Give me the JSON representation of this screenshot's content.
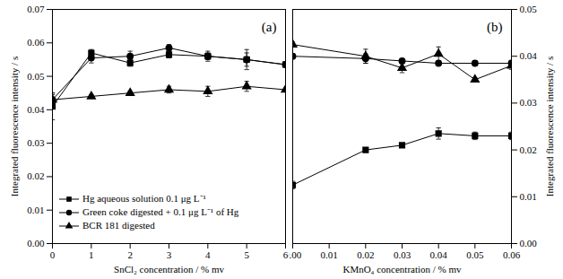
{
  "chart_data": [
    {
      "type": "line",
      "title": "(a)",
      "x_label": "SnCl₂ concentration / % mv",
      "y_label": "Integrated fluorescence intensity / s",
      "x": [
        0,
        1,
        2,
        3,
        4,
        5,
        6
      ],
      "xlim": [
        0,
        6
      ],
      "xticks": [
        0,
        1,
        2,
        3,
        4,
        5,
        6
      ],
      "ylim": [
        0,
        0.07
      ],
      "yticks": [
        {
          "value": 0,
          "label": "0.00"
        },
        {
          "value": 0.01,
          "label": "0.01"
        },
        {
          "value": 0.02,
          "label": "0.02"
        },
        {
          "value": 0.03,
          "label": "0.03"
        },
        {
          "value": 0.04,
          "label": "0.04"
        },
        {
          "value": 0.05,
          "label": "0.05"
        },
        {
          "value": 0.06,
          "label": "0.06"
        },
        {
          "value": 0.07,
          "label": "0.07"
        }
      ],
      "legend": "bottom-left",
      "series": [
        {
          "name": "Hg aqueous solution 0.1 μg L⁻¹",
          "color": "#000000",
          "marker": "square",
          "line_style": "solid",
          "values": [
            0.041,
            0.057,
            0.054,
            0.0565,
            0.056,
            0.055,
            0.0535
          ],
          "errors": [
            0.004,
            0.001,
            0.001,
            0.001,
            0.0015,
            0.003,
            0.0005
          ]
        },
        {
          "name": "Green coke digested + 0.1 μg L⁻¹ of Hg",
          "color": "#000000",
          "marker": "circle",
          "line_style": "solid",
          "values": [
            0.043,
            0.0555,
            0.056,
            0.0585,
            0.056,
            0.055,
            0.0535
          ],
          "errors": [
            0.002,
            0.0015,
            0.0015,
            0.001,
            0.001,
            0.002,
            0.0005
          ]
        },
        {
          "name": "BCR 181 digested",
          "color": "#000000",
          "marker": "triangle",
          "line_style": "solid",
          "values": [
            0.043,
            0.044,
            0.045,
            0.046,
            0.0455,
            0.047,
            0.046
          ],
          "errors": [
            0.0015,
            0.0005,
            0.0005,
            0.001,
            0.0015,
            0.0015,
            0.0005
          ]
        }
      ]
    },
    {
      "type": "line",
      "title": "(b)",
      "x_label": "KMnO₄ concentration / % mv",
      "y_label": "Integrated fluorescence intensity / s",
      "x": [
        0,
        0.02,
        0.03,
        0.04,
        0.05,
        0.06
      ],
      "xlim": [
        0,
        0.06
      ],
      "xticks": [
        {
          "value": 0,
          "label": "0.00"
        },
        {
          "value": 0.01,
          "label": "0.01"
        },
        {
          "value": 0.02,
          "label": "0.02"
        },
        {
          "value": 0.03,
          "label": "0.03"
        },
        {
          "value": 0.04,
          "label": "0.04"
        },
        {
          "value": 0.05,
          "label": "0.05"
        },
        {
          "value": 0.06,
          "label": "0.06"
        }
      ],
      "ylim": [
        0,
        0.05
      ],
      "yticks": [
        {
          "value": 0,
          "label": "0.00"
        },
        {
          "value": 0.01,
          "label": "0.01"
        },
        {
          "value": 0.02,
          "label": "0.02"
        },
        {
          "value": 0.03,
          "label": "0.03"
        },
        {
          "value": 0.04,
          "label": "0.04"
        },
        {
          "value": 0.05,
          "label": "0.05"
        }
      ],
      "series": [
        {
          "name": "Hg aqueous solution 0.1 μg L⁻¹",
          "color": "#000000",
          "marker": "square",
          "line_style": "solid",
          "values": [
            0.0125,
            0.02,
            0.021,
            0.0235,
            0.023,
            0.023
          ],
          "errors": [
            0.0008,
            0.0005,
            0.0003,
            0.0012,
            0.0008,
            0.0008
          ]
        },
        {
          "name": "Green coke digested + 0.1 μg L⁻¹ of Hg",
          "color": "#000000",
          "marker": "circle",
          "line_style": "solid",
          "values": [
            0.04,
            0.0395,
            0.039,
            0.0385,
            0.0385,
            0.0385
          ],
          "errors": [
            0.0005,
            0.001,
            0.0003,
            0.0003,
            0.0005,
            0.0003
          ]
        },
        {
          "name": "BCR 181 digested",
          "color": "#000000",
          "marker": "triangle",
          "line_style": "solid",
          "values": [
            0.0425,
            0.04,
            0.0375,
            0.0405,
            0.035,
            0.038
          ],
          "errors": [
            0.0005,
            0.0015,
            0.001,
            0.0015,
            0.0005,
            0.0008
          ]
        }
      ]
    }
  ]
}
